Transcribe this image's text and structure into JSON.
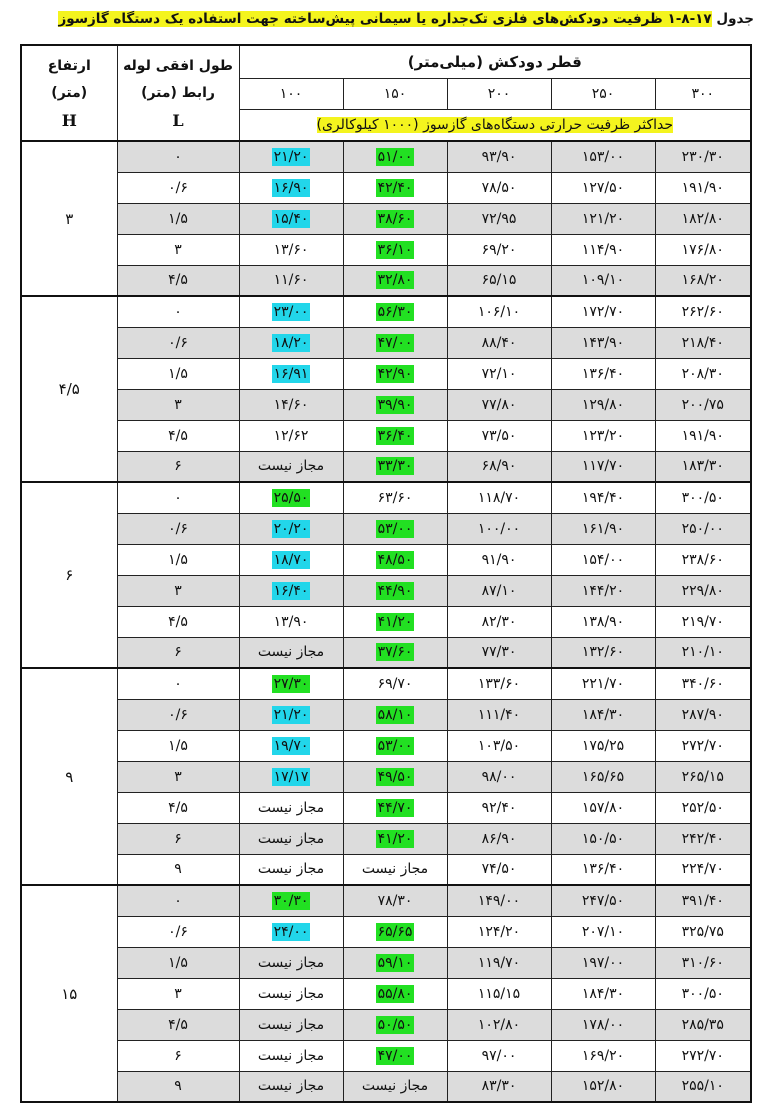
{
  "title": {
    "label": "جدول",
    "number": "۱-۸-۱۷",
    "text": "ظرفیت دودکش‌های فلزی تک‌جداره یا سیمانی پیش‌ساخته جهت استفاده یک دستگاه گازسوز"
  },
  "header": {
    "height": {
      "line1": "ارتفاع",
      "line2": "(متر)",
      "symbol": "H"
    },
    "length": {
      "line1": "طول افقی لوله",
      "line2": "رابط (متر)",
      "symbol": "L"
    },
    "diameter_title": "قطر دودکش (میلی‌متر)",
    "diameters": [
      "۱۰۰",
      "۱۵۰",
      "۲۰۰",
      "۲۵۰",
      "۳۰۰"
    ],
    "capacity_title": "حداکثر ظرفیت حرارتی دستگاه‌های گازسوز (۱۰۰۰ کیلوکالری)"
  },
  "highlight_colors": {
    "c": "#22d6ea",
    "g": "#22e022",
    "title": "#f4f41e",
    "row_gray": "#dcdcdc"
  },
  "groups": [
    {
      "height": "۳",
      "rows": [
        {
          "L": "۰",
          "values": [
            "۲۱/۲۰",
            "۵۱/۰۰",
            "۹۳/۹۰",
            "۱۵۳/۰۰",
            "۲۳۰/۳۰"
          ],
          "hl": [
            "c",
            "g",
            "",
            "",
            ""
          ]
        },
        {
          "L": "۰/۶",
          "values": [
            "۱۶/۹۰",
            "۴۲/۴۰",
            "۷۸/۵۰",
            "۱۲۷/۵۰",
            "۱۹۱/۹۰"
          ],
          "hl": [
            "c",
            "g",
            "",
            "",
            ""
          ]
        },
        {
          "L": "۱/۵",
          "values": [
            "۱۵/۴۰",
            "۳۸/۶۰",
            "۷۲/۹۵",
            "۱۲۱/۲۰",
            "۱۸۲/۸۰"
          ],
          "hl": [
            "c",
            "g",
            "",
            "",
            ""
          ]
        },
        {
          "L": "۳",
          "values": [
            "۱۳/۶۰",
            "۳۶/۱۰",
            "۶۹/۲۰",
            "۱۱۴/۹۰",
            "۱۷۶/۸۰"
          ],
          "hl": [
            "",
            "g",
            "",
            "",
            ""
          ]
        },
        {
          "L": "۴/۵",
          "values": [
            "۱۱/۶۰",
            "۳۲/۸۰",
            "۶۵/۱۵",
            "۱۰۹/۱۰",
            "۱۶۸/۲۰"
          ],
          "hl": [
            "",
            "g",
            "",
            "",
            ""
          ]
        }
      ]
    },
    {
      "height": "۴/۵",
      "rows": [
        {
          "L": "۰",
          "values": [
            "۲۳/۰۰",
            "۵۶/۳۰",
            "۱۰۶/۱۰",
            "۱۷۲/۷۰",
            "۲۶۲/۶۰"
          ],
          "hl": [
            "c",
            "g",
            "",
            "",
            ""
          ]
        },
        {
          "L": "۰/۶",
          "values": [
            "۱۸/۲۰",
            "۴۷/۰۰",
            "۸۸/۴۰",
            "۱۴۳/۹۰",
            "۲۱۸/۴۰"
          ],
          "hl": [
            "c",
            "g",
            "",
            "",
            ""
          ]
        },
        {
          "L": "۱/۵",
          "values": [
            "۱۶/۹۱",
            "۴۲/۹۰",
            "۷۲/۱۰",
            "۱۳۶/۴۰",
            "۲۰۸/۳۰"
          ],
          "hl": [
            "c",
            "g",
            "",
            "",
            ""
          ]
        },
        {
          "L": "۳",
          "values": [
            "۱۴/۶۰",
            "۳۹/۹۰",
            "۷۷/۸۰",
            "۱۲۹/۸۰",
            "۲۰۰/۷۵"
          ],
          "hl": [
            "",
            "g",
            "",
            "",
            ""
          ]
        },
        {
          "L": "۴/۵",
          "values": [
            "۱۲/۶۲",
            "۳۶/۴۰",
            "۷۳/۵۰",
            "۱۲۳/۲۰",
            "۱۹۱/۹۰"
          ],
          "hl": [
            "",
            "g",
            "",
            "",
            ""
          ]
        },
        {
          "L": "۶",
          "values": [
            "مجاز نیست",
            "۳۳/۳۰",
            "۶۸/۹۰",
            "۱۱۷/۷۰",
            "۱۸۳/۳۰"
          ],
          "hl": [
            "",
            "g",
            "",
            "",
            ""
          ]
        }
      ]
    },
    {
      "height": "۶",
      "rows": [
        {
          "L": "۰",
          "values": [
            "۲۵/۵۰",
            "۶۳/۶۰",
            "۱۱۸/۷۰",
            "۱۹۴/۴۰",
            "۳۰۰/۵۰"
          ],
          "hl": [
            "g",
            "",
            "",
            "",
            ""
          ]
        },
        {
          "L": "۰/۶",
          "values": [
            "۲۰/۲۰",
            "۵۳/۰۰",
            "۱۰۰/۰۰",
            "۱۶۱/۹۰",
            "۲۵۰/۰۰"
          ],
          "hl": [
            "c",
            "g",
            "",
            "",
            ""
          ]
        },
        {
          "L": "۱/۵",
          "values": [
            "۱۸/۷۰",
            "۴۸/۵۰",
            "۹۱/۹۰",
            "۱۵۴/۰۰",
            "۲۳۸/۶۰"
          ],
          "hl": [
            "c",
            "g",
            "",
            "",
            ""
          ]
        },
        {
          "L": "۳",
          "values": [
            "۱۶/۴۰",
            "۴۴/۹۰",
            "۸۷/۱۰",
            "۱۴۴/۲۰",
            "۲۲۹/۸۰"
          ],
          "hl": [
            "c",
            "g",
            "",
            "",
            ""
          ]
        },
        {
          "L": "۴/۵",
          "values": [
            "۱۳/۹۰",
            "۴۱/۲۰",
            "۸۲/۳۰",
            "۱۳۸/۹۰",
            "۲۱۹/۷۰"
          ],
          "hl": [
            "",
            "g",
            "",
            "",
            ""
          ]
        },
        {
          "L": "۶",
          "values": [
            "مجاز نیست",
            "۳۷/۶۰",
            "۷۷/۳۰",
            "۱۳۲/۶۰",
            "۲۱۰/۱۰"
          ],
          "hl": [
            "",
            "g",
            "",
            "",
            ""
          ]
        }
      ]
    },
    {
      "height": "۹",
      "rows": [
        {
          "L": "۰",
          "values": [
            "۲۷/۳۰",
            "۶۹/۷۰",
            "۱۳۳/۶۰",
            "۲۲۱/۷۰",
            "۳۴۰/۶۰"
          ],
          "hl": [
            "g",
            "",
            "",
            "",
            ""
          ]
        },
        {
          "L": "۰/۶",
          "values": [
            "۲۱/۲۰",
            "۵۸/۱۰",
            "۱۱۱/۴۰",
            "۱۸۴/۳۰",
            "۲۸۷/۹۰"
          ],
          "hl": [
            "c",
            "g",
            "",
            "",
            ""
          ]
        },
        {
          "L": "۱/۵",
          "values": [
            "۱۹/۷۰",
            "۵۳/۰۰",
            "۱۰۳/۵۰",
            "۱۷۵/۲۵",
            "۲۷۲/۷۰"
          ],
          "hl": [
            "c",
            "g",
            "",
            "",
            ""
          ]
        },
        {
          "L": "۳",
          "values": [
            "۱۷/۱۷",
            "۴۹/۵۰",
            "۹۸/۰۰",
            "۱۶۵/۶۵",
            "۲۶۵/۱۵"
          ],
          "hl": [
            "c",
            "g",
            "",
            "",
            ""
          ]
        },
        {
          "L": "۴/۵",
          "values": [
            "مجاز نیست",
            "۴۴/۷۰",
            "۹۲/۴۰",
            "۱۵۷/۸۰",
            "۲۵۲/۵۰"
          ],
          "hl": [
            "",
            "g",
            "",
            "",
            ""
          ]
        },
        {
          "L": "۶",
          "values": [
            "مجاز نیست",
            "۴۱/۲۰",
            "۸۶/۹۰",
            "۱۵۰/۵۰",
            "۲۴۲/۴۰"
          ],
          "hl": [
            "",
            "g",
            "",
            "",
            ""
          ]
        },
        {
          "L": "۹",
          "values": [
            "مجاز نیست",
            "مجاز نیست",
            "۷۴/۵۰",
            "۱۳۶/۴۰",
            "۲۲۴/۷۰"
          ],
          "hl": [
            "",
            "",
            "",
            "",
            ""
          ]
        }
      ]
    },
    {
      "height": "۱۵",
      "rows": [
        {
          "L": "۰",
          "values": [
            "۳۰/۳۰",
            "۷۸/۳۰",
            "۱۴۹/۰۰",
            "۲۴۷/۵۰",
            "۳۹۱/۴۰"
          ],
          "hl": [
            "g",
            "",
            "",
            "",
            ""
          ]
        },
        {
          "L": "۰/۶",
          "values": [
            "۲۴/۰۰",
            "۶۵/۶۵",
            "۱۲۴/۲۰",
            "۲۰۷/۱۰",
            "۳۲۵/۷۵"
          ],
          "hl": [
            "c",
            "g",
            "",
            "",
            ""
          ]
        },
        {
          "L": "۱/۵",
          "values": [
            "مجاز نیست",
            "۵۹/۱۰",
            "۱۱۹/۷۰",
            "۱۹۷/۰۰",
            "۳۱۰/۶۰"
          ],
          "hl": [
            "",
            "g",
            "",
            "",
            ""
          ]
        },
        {
          "L": "۳",
          "values": [
            "مجاز نیست",
            "۵۵/۸۰",
            "۱۱۵/۱۵",
            "۱۸۴/۳۰",
            "۳۰۰/۵۰"
          ],
          "hl": [
            "",
            "g",
            "",
            "",
            ""
          ]
        },
        {
          "L": "۴/۵",
          "values": [
            "مجاز نیست",
            "۵۰/۵۰",
            "۱۰۲/۸۰",
            "۱۷۸/۰۰",
            "۲۸۵/۳۵"
          ],
          "hl": [
            "",
            "g",
            "",
            "",
            ""
          ]
        },
        {
          "L": "۶",
          "values": [
            "مجاز نیست",
            "۴۷/۰۰",
            "۹۷/۰۰",
            "۱۶۹/۲۰",
            "۲۷۲/۷۰"
          ],
          "hl": [
            "",
            "g",
            "",
            "",
            ""
          ]
        },
        {
          "L": "۹",
          "values": [
            "مجاز نیست",
            "مجاز نیست",
            "۸۳/۳۰",
            "۱۵۲/۸۰",
            "۲۵۵/۱۰"
          ],
          "hl": [
            "",
            "",
            "",
            "",
            ""
          ]
        }
      ]
    }
  ]
}
